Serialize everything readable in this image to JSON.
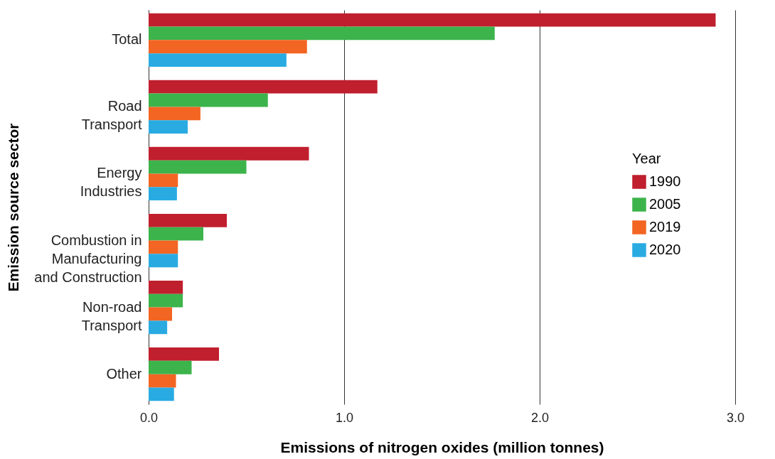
{
  "chart_data": {
    "type": "bar",
    "orientation": "horizontal",
    "xlabel": "Emissions of nitrogen oxides (million tonnes)",
    "ylabel": "Emission source sector",
    "legend_title": "Year",
    "categories": [
      "Total",
      "Road Transport",
      "Energy Industries",
      "Combustion in Manufacturing and Construction",
      "Non-road Transport",
      "Other"
    ],
    "series": [
      {
        "name": "1990",
        "color": "#c01f2e",
        "values": [
          2.9,
          1.17,
          0.82,
          0.4,
          0.175,
          0.36
        ]
      },
      {
        "name": "2005",
        "color": "#3cb44b",
        "values": [
          1.77,
          0.61,
          0.5,
          0.28,
          0.175,
          0.22
        ]
      },
      {
        "name": "2019",
        "color": "#f26522",
        "values": [
          0.81,
          0.265,
          0.15,
          0.15,
          0.12,
          0.14
        ]
      },
      {
        "name": "2020",
        "color": "#29abe2",
        "values": [
          0.705,
          0.2,
          0.145,
          0.15,
          0.095,
          0.13
        ]
      }
    ],
    "xlim": [
      0,
      3
    ],
    "xticks": [
      {
        "value": 0,
        "label": "0.0"
      },
      {
        "value": 1,
        "label": "1.0"
      },
      {
        "value": 2,
        "label": "2.0"
      },
      {
        "value": 3,
        "label": "3.0"
      }
    ],
    "grid": "x",
    "legend": "right"
  }
}
